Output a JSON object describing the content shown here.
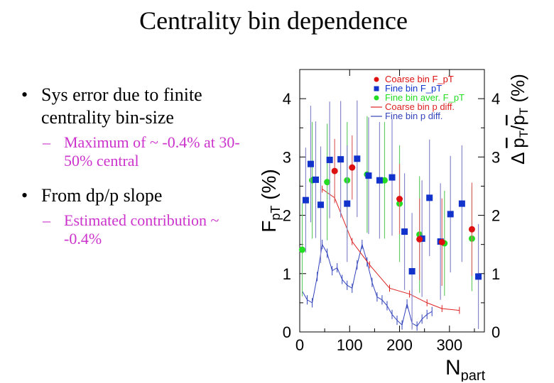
{
  "slide": {
    "title": "Centrality bin dependence",
    "bullets": [
      {
        "text": "Sys error due to finite centrality bin-size",
        "sub": "Maximum of ~ -0.4% at 30-50% central"
      },
      {
        "text": "From dp/p slope",
        "sub": "Estimated contribution ~ -0.4%"
      }
    ],
    "bullet_glyph": "•",
    "sub_glyph": "–"
  },
  "chart_data": {
    "type": "scatter",
    "xlabel": "N_part",
    "ylabel_left": "F_pT (%)",
    "ylabel_right": "Δ p̄T/p̄T (%)",
    "xlim": [
      0,
      370
    ],
    "ylim": [
      0,
      4.5
    ],
    "x_ticks": [
      "0",
      "100",
      "200",
      "300"
    ],
    "y_ticks_left": [
      "0",
      "1",
      "2",
      "3",
      "4"
    ],
    "y_ticks_right": [
      "0",
      "1",
      "2",
      "3",
      "4"
    ],
    "grid": false,
    "legend_position": "top-right",
    "colors": {
      "coarse_points": "#dd1111",
      "fine_points": "#1133cc",
      "fine_aver_points": "#22dd22",
      "coarse_line": "#dd2222",
      "fine_line": "#3344bb",
      "fine_err": "#8888cc",
      "aver_err": "#66cc66",
      "coarse_err": "#dd6666"
    },
    "series": [
      {
        "name": "Coarse bin F_pT",
        "marker": "circle",
        "x": [
          70,
          105,
          200,
          240,
          285,
          345
        ],
        "y": [
          2.76,
          2.82,
          2.28,
          1.59,
          1.54,
          1.76
        ],
        "err": [
          0.55,
          0.55,
          0.6,
          0.7,
          0.75,
          0.8
        ]
      },
      {
        "name": "Fine bin F_pT",
        "marker": "square",
        "x": [
          12,
          22,
          32,
          42,
          60,
          82,
          95,
          115,
          138,
          160,
          185,
          210,
          225,
          245,
          260,
          282,
          302,
          325,
          358
        ],
        "y": [
          2.26,
          2.88,
          2.61,
          2.18,
          2.95,
          2.96,
          2.2,
          2.97,
          2.68,
          2.6,
          2.65,
          1.72,
          1.04,
          1.6,
          2.3,
          1.55,
          2.02,
          2.2,
          0.95
        ],
        "err": [
          0.9,
          1.0,
          1.0,
          1.0,
          1.0,
          1.0,
          1.0,
          1.0,
          1.0,
          1.0,
          1.0,
          1.0,
          1.0,
          1.0,
          1.0,
          1.0,
          1.0,
          1.0,
          0.9
        ]
      },
      {
        "name": "Fine bin aver. F_pT",
        "marker": "circle",
        "x": [
          5,
          25,
          55,
          95,
          135,
          170,
          200,
          240,
          290,
          345
        ],
        "y": [
          1.41,
          2.6,
          2.57,
          2.6,
          2.7,
          2.6,
          2.2,
          1.67,
          1.52,
          1.6
        ],
        "err": [
          0.8,
          1.0,
          1.0,
          1.0,
          1.0,
          1.0,
          1.0,
          1.0,
          0.9,
          0.9
        ]
      },
      {
        "name": "Coarse bin p diff.",
        "marker": "line",
        "x": [
          45,
          70,
          105,
          140,
          180,
          220,
          255,
          285,
          320
        ],
        "y": [
          2.45,
          2.3,
          1.55,
          1.15,
          0.75,
          0.65,
          0.5,
          0.4,
          0.37
        ],
        "err": [
          0.06,
          0.06,
          0.06,
          0.06,
          0.06,
          0.06,
          0.06,
          0.06,
          0.06
        ]
      },
      {
        "name": "Fine bin p diff.",
        "marker": "line",
        "x": [
          5,
          15,
          25,
          35,
          45,
          55,
          65,
          75,
          85,
          95,
          105,
          115,
          125,
          135,
          145,
          155,
          165,
          175,
          185,
          195,
          205,
          215,
          225,
          235,
          245,
          255,
          265
        ],
        "y": [
          0.7,
          0.55,
          0.5,
          0.95,
          1.5,
          1.35,
          1.05,
          1.1,
          0.9,
          0.8,
          0.75,
          1.15,
          1.5,
          1.2,
          0.85,
          0.6,
          0.55,
          0.45,
          0.3,
          0.2,
          0.12,
          0.48,
          0.15,
          0.1,
          0.22,
          0.3,
          0.35
        ],
        "err": [
          0.08,
          0.08,
          0.08,
          0.08,
          0.08,
          0.08,
          0.08,
          0.08,
          0.08,
          0.08,
          0.08,
          0.08,
          0.08,
          0.08,
          0.08,
          0.08,
          0.08,
          0.08,
          0.08,
          0.08,
          0.08,
          0.08,
          0.08,
          0.08,
          0.08,
          0.08,
          0.08
        ]
      }
    ]
  }
}
